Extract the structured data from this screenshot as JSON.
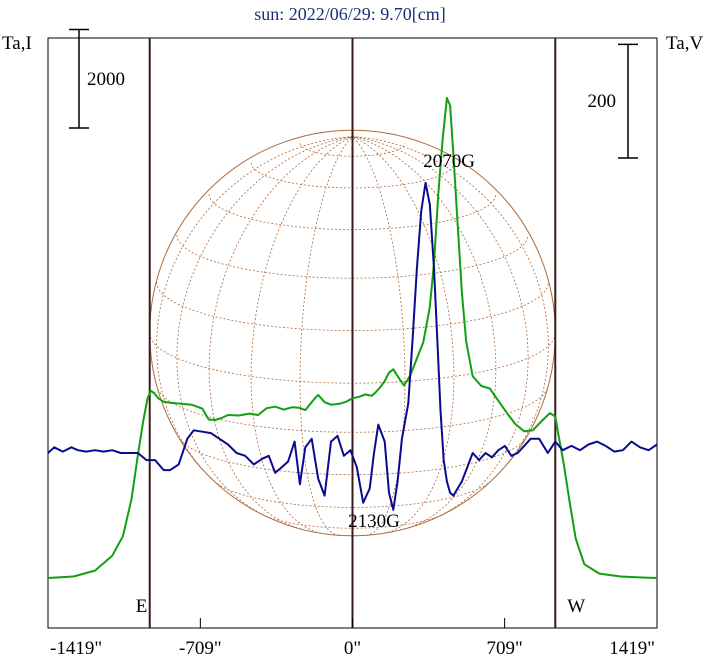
{
  "chart_data": {
    "type": "line",
    "title": "sun: 2022/06/29: 9.70[cm]",
    "ylabel_left": "Ta,I",
    "ylabel_right": "Ta,V",
    "xlabel": "",
    "xlim": [
      -1419,
      1419
    ],
    "x_ticks": [
      -1419,
      -709,
      0,
      709,
      1419
    ],
    "x_tick_labels": [
      "-1419\"",
      "-709\"",
      "0\"",
      "709\"",
      "1419\""
    ],
    "vertical_lines": [
      -945,
      0,
      945
    ],
    "limb_labels": [
      {
        "x": -945,
        "text": "E"
      },
      {
        "x": 945,
        "text": "W"
      }
    ],
    "scale_bars": [
      {
        "axis": "left",
        "value": 2000,
        "label": "2000"
      },
      {
        "axis": "right",
        "value": 200,
        "label": "200"
      }
    ],
    "annotations": [
      {
        "text": "2070G",
        "x": 450
      },
      {
        "text": "2130G",
        "x": 100
      }
    ],
    "grid": false,
    "colors": {
      "stokes_i": "#11a011",
      "stokes_v": "#0a0a90",
      "disk": "#b06a3a",
      "axes": "#000000",
      "vlines": "#3a1a1a",
      "title": "#1a2f7a"
    },
    "series": [
      {
        "axis": "left",
        "color": "#11a011",
        "unit": "I",
        "x": [
          -1419,
          -1300,
          -1200,
          -1120,
          -1070,
          -1030,
          -1000,
          -975,
          -955,
          -940,
          -925,
          -905,
          -880,
          -850,
          -800,
          -750,
          -700,
          -670,
          -640,
          -610,
          -580,
          -530,
          -480,
          -440,
          -400,
          -360,
          -320,
          -280,
          -250,
          -220,
          -200,
          -175,
          -160,
          -130,
          -100,
          -60,
          -30,
          0,
          30,
          60,
          90,
          110,
          130,
          150,
          170,
          190,
          210,
          240,
          270,
          300,
          330,
          360,
          380,
          400,
          420,
          440,
          455,
          470,
          490,
          510,
          530,
          560,
          600,
          640,
          680,
          720,
          760,
          800,
          840,
          880,
          920,
          945,
          960,
          985,
          1010,
          1040,
          1080,
          1150,
          1250,
          1350,
          1419
        ],
        "values": [
          0,
          30,
          150,
          450,
          850,
          1600,
          2500,
          3200,
          3650,
          3800,
          3760,
          3650,
          3580,
          3560,
          3540,
          3520,
          3440,
          3220,
          3210,
          3250,
          3310,
          3300,
          3340,
          3310,
          3450,
          3480,
          3420,
          3470,
          3460,
          3410,
          3520,
          3650,
          3720,
          3570,
          3520,
          3540,
          3580,
          3650,
          3680,
          3730,
          3700,
          3780,
          3880,
          4000,
          4170,
          4240,
          4100,
          3910,
          4120,
          4460,
          4790,
          5500,
          6400,
          7800,
          8900,
          9750,
          9600,
          8600,
          7200,
          5800,
          4800,
          4100,
          3900,
          3850,
          3600,
          3350,
          3120,
          2980,
          3000,
          3180,
          3350,
          3280,
          2900,
          2300,
          1600,
          800,
          280,
          90,
          30,
          10,
          0
        ]
      },
      {
        "axis": "right",
        "color": "#0a0a90",
        "unit": "V",
        "x": [
          -1419,
          -1390,
          -1350,
          -1310,
          -1280,
          -1240,
          -1200,
          -1160,
          -1120,
          -1080,
          -1040,
          -1000,
          -960,
          -920,
          -880,
          -850,
          -810,
          -770,
          -740,
          -700,
          -660,
          -620,
          -580,
          -540,
          -500,
          -460,
          -420,
          -390,
          -360,
          -330,
          -300,
          -270,
          -245,
          -220,
          -190,
          -160,
          -130,
          -100,
          -70,
          -40,
          -10,
          20,
          50,
          80,
          100,
          120,
          150,
          170,
          190,
          210,
          230,
          260,
          280,
          300,
          320,
          340,
          360,
          380,
          395,
          410,
          425,
          440,
          455,
          470,
          490,
          510,
          535,
          560,
          590,
          620,
          650,
          680,
          710,
          740,
          770,
          800,
          830,
          870,
          910,
          945,
          980,
          1020,
          1060,
          1100,
          1140,
          1180,
          1220,
          1260,
          1300,
          1340,
          1380,
          1419
        ],
        "values": [
          0,
          4,
          1,
          4,
          2,
          1,
          2,
          1,
          2,
          0,
          0,
          0,
          -5,
          -5,
          -12,
          -12,
          -8,
          10,
          16,
          15,
          14,
          10,
          6,
          0,
          -2,
          -8,
          -4,
          -2,
          -14,
          -10,
          -6,
          8,
          -22,
          4,
          10,
          -18,
          -30,
          8,
          12,
          -2,
          2,
          -10,
          -35,
          -25,
          0,
          20,
          8,
          -28,
          -40,
          -20,
          10,
          35,
          80,
          130,
          170,
          190,
          175,
          130,
          80,
          30,
          -5,
          -20,
          -28,
          -30,
          -25,
          -20,
          -10,
          0,
          -5,
          0,
          -3,
          2,
          5,
          -2,
          0,
          5,
          10,
          10,
          0,
          8,
          2,
          5,
          2,
          6,
          8,
          5,
          1,
          2,
          8,
          4,
          2,
          6
        ]
      }
    ]
  }
}
